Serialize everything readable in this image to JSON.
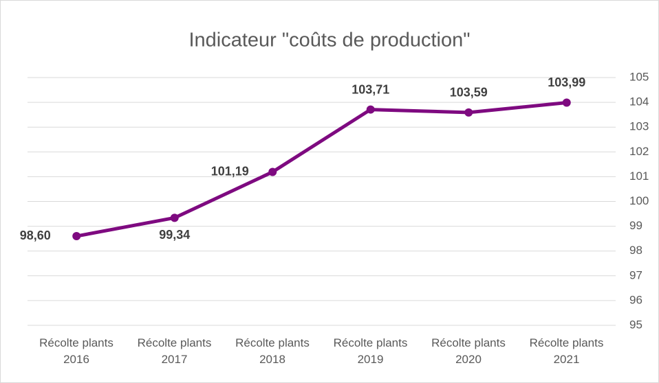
{
  "chart_data": {
    "type": "line",
    "title": "Indicateur \"coûts de production\"",
    "categories": [
      "Récolte plants 2016",
      "Récolte plants 2017",
      "Récolte plants 2018",
      "Récolte plants 2019",
      "Récolte plants 2020",
      "Récolte plants 2021"
    ],
    "series": [
      {
        "name": "Indicateur",
        "color": "#7e0a80",
        "values": [
          98.6,
          99.34,
          101.19,
          103.71,
          103.59,
          103.99
        ],
        "value_labels": [
          "98,60",
          "99,34",
          "101,19",
          "103,71",
          "103,59",
          "103,99"
        ]
      }
    ],
    "ylim": [
      95,
      105
    ],
    "yticks": [
      95,
      96,
      97,
      98,
      99,
      100,
      101,
      102,
      103,
      104,
      105
    ],
    "yaxis_side": "right",
    "grid": true
  }
}
